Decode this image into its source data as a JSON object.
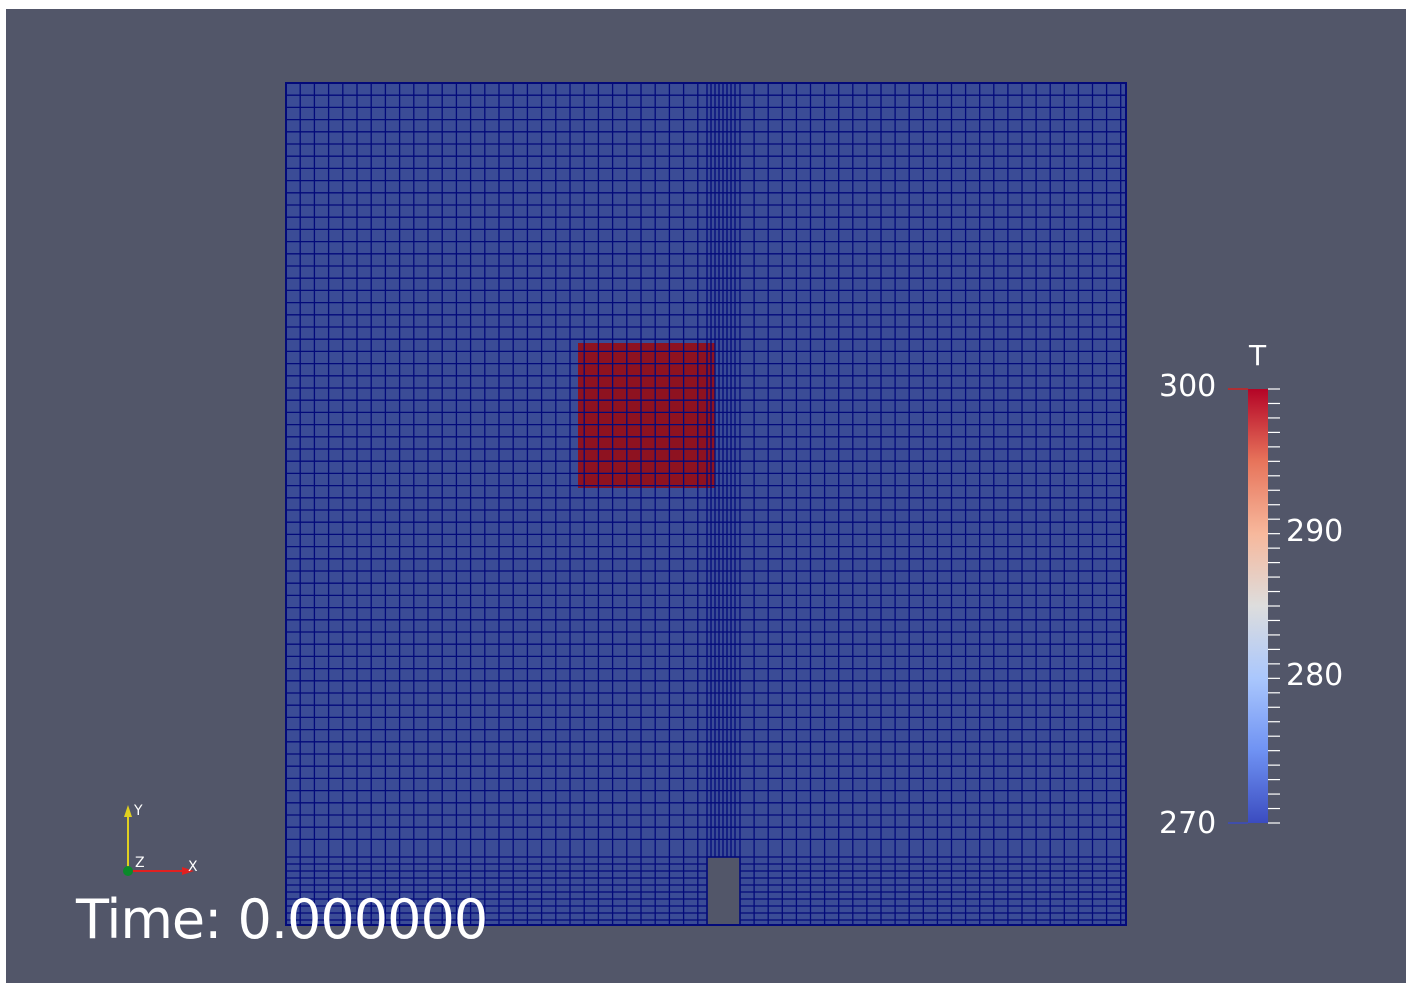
{
  "colors": {
    "background": "#525669",
    "mesh_fill": "#3b4c96",
    "mesh_lines": "#030a7a",
    "hot_fill": "#8e1220",
    "text": "#ffffff",
    "colormap": [
      "#3b4cc0",
      "#6f92f3",
      "#aac7fd",
      "#dddddd",
      "#f7b89c",
      "#e7745b",
      "#b40426"
    ]
  },
  "scene": {
    "field_name": "T",
    "annotation": {
      "label": "Time:",
      "value": "0.000000"
    },
    "regions": [
      {
        "name": "domain",
        "field_value": 270
      },
      {
        "name": "hot-block",
        "field_value": 300
      },
      {
        "name": "inlet-notch",
        "field_value": null
      }
    ]
  },
  "legend": {
    "title": "T",
    "range": [
      270,
      300
    ],
    "labels": [
      "300",
      "290",
      "280",
      "270"
    ],
    "minor_ticks": 30
  },
  "axes_triad": {
    "x": {
      "label": "X",
      "color": "#e02020"
    },
    "y": {
      "label": "Y",
      "color": "#e0d020"
    },
    "z": {
      "label": "Z",
      "color": "#0a8a2a"
    }
  }
}
